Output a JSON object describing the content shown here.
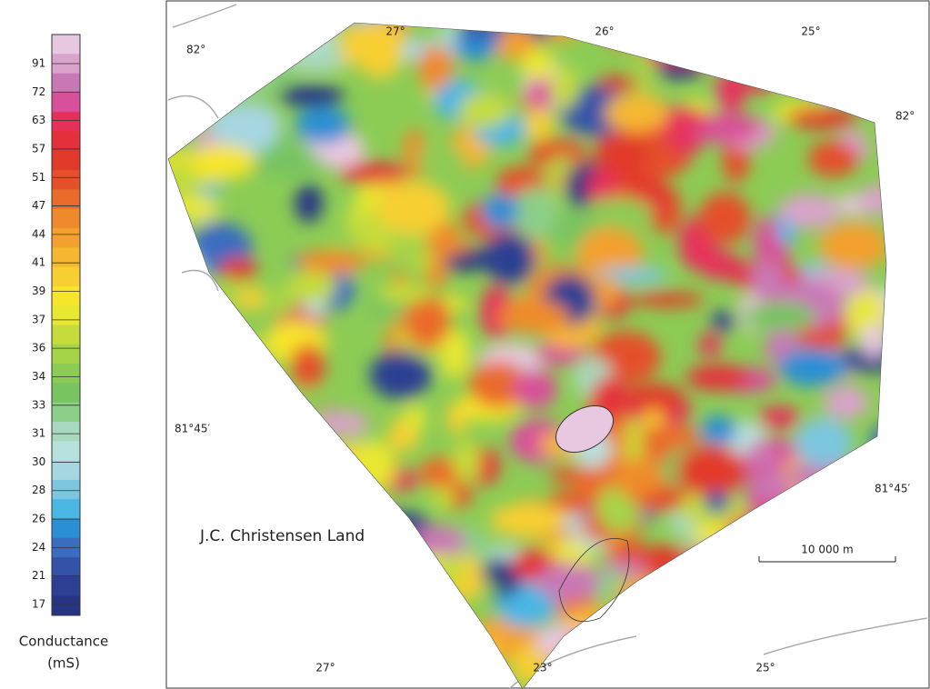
{
  "legend": {
    "title": "Conductance",
    "unit": "(mS)",
    "labels": [
      "91",
      "72",
      "63",
      "57",
      "51",
      "47",
      "44",
      "41",
      "39",
      "37",
      "36",
      "34",
      "33",
      "31",
      "30",
      "28",
      "26",
      "24",
      "21",
      "17"
    ],
    "colors": [
      "#e8c8e0",
      "#d9a3cc",
      "#c978b6",
      "#d9509a",
      "#e6305a",
      "#e4303a",
      "#e23a2a",
      "#e4502a",
      "#ea6a2a",
      "#ef8a2c",
      "#f3a02e",
      "#f6b730",
      "#f7cf30",
      "#f7e52c",
      "#e8e830",
      "#c5dc3a",
      "#a6d448",
      "#8ccc55",
      "#78c460",
      "#8ccf88",
      "#a8d8bd",
      "#b8e0dd",
      "#a6d6e2",
      "#7cc6df",
      "#4ab6e4",
      "#2a8fd4",
      "#3a6cc0",
      "#3452a8",
      "#2c3f92",
      "#263484"
    ]
  },
  "map": {
    "lat_labels": [
      "82°",
      "82°",
      "81°45′",
      "81°45′"
    ],
    "lon_labels": [
      "27°",
      "26°",
      "25°",
      "27°",
      "23°",
      "25°"
    ],
    "place": "J.C. Christensen Land",
    "scale": "10 000 m"
  }
}
